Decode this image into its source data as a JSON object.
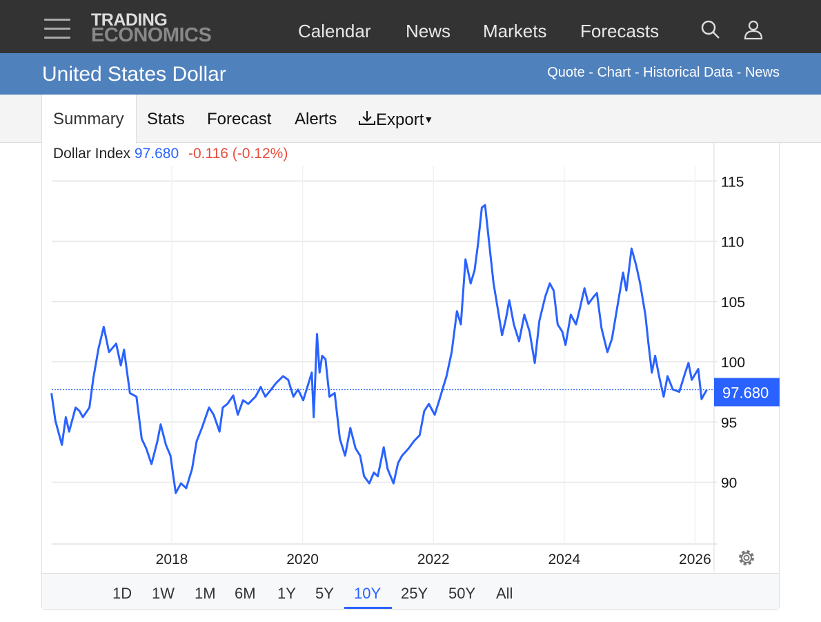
{
  "header": {
    "logo_line1": "TRADING",
    "logo_line2": "ECONOMICS",
    "nav": [
      "Calendar",
      "News",
      "Markets",
      "Forecasts"
    ],
    "icons": [
      "menu-icon",
      "search-icon",
      "user-icon"
    ]
  },
  "page": {
    "title": "United States Dollar",
    "links": "Quote - Chart - Historical Data - News"
  },
  "tabs": [
    "Summary",
    "Stats",
    "Forecast",
    "Alerts",
    "Export"
  ],
  "quote": {
    "name": "Dollar Index",
    "value": "97.680",
    "change": "-0.116 (-0.12%)"
  },
  "ranges": [
    "1D",
    "1W",
    "1M",
    "6M",
    "1Y",
    "5Y",
    "10Y",
    "25Y",
    "50Y",
    "All"
  ],
  "active_range": "10Y",
  "colors": {
    "line": "#2962ff",
    "change": "#e74c3c",
    "banner": "#4f81bd"
  },
  "chart_data": {
    "type": "line",
    "title": "Dollar Index",
    "xlabel": "",
    "ylabel": "",
    "x_ticks": [
      "2018",
      "2020",
      "2022",
      "2024",
      "2026"
    ],
    "y_ticks": [
      "90",
      "95",
      "100",
      "105",
      "110",
      "115"
    ],
    "ylim": [
      85,
      117
    ],
    "xlim": [
      2016.16,
      2026.45
    ],
    "last_value": "97.680",
    "grid": true,
    "series": [
      {
        "name": "Dollar Index",
        "points": [
          [
            2016.16,
            97.4
          ],
          [
            2016.22,
            95.1
          ],
          [
            2016.32,
            93.1
          ],
          [
            2016.38,
            95.4
          ],
          [
            2016.43,
            94.2
          ],
          [
            2016.53,
            96.2
          ],
          [
            2016.59,
            95.9
          ],
          [
            2016.64,
            95.4
          ],
          [
            2016.74,
            96.2
          ],
          [
            2016.8,
            98.6
          ],
          [
            2016.88,
            101.1
          ],
          [
            2016.96,
            102.9
          ],
          [
            2017.04,
            100.8
          ],
          [
            2017.15,
            101.5
          ],
          [
            2017.22,
            99.7
          ],
          [
            2017.27,
            101.0
          ],
          [
            2017.36,
            97.4
          ],
          [
            2017.46,
            97.1
          ],
          [
            2017.54,
            93.6
          ],
          [
            2017.61,
            92.8
          ],
          [
            2017.69,
            91.5
          ],
          [
            2017.78,
            93.4
          ],
          [
            2017.83,
            94.8
          ],
          [
            2017.91,
            93.1
          ],
          [
            2017.98,
            92.2
          ],
          [
            2018.06,
            89.1
          ],
          [
            2018.14,
            89.9
          ],
          [
            2018.22,
            89.5
          ],
          [
            2018.31,
            91.1
          ],
          [
            2018.38,
            93.4
          ],
          [
            2018.46,
            94.5
          ],
          [
            2018.57,
            96.2
          ],
          [
            2018.64,
            95.6
          ],
          [
            2018.73,
            94.2
          ],
          [
            2018.78,
            96.2
          ],
          [
            2018.85,
            96.5
          ],
          [
            2018.94,
            97.2
          ],
          [
            2019.01,
            95.6
          ],
          [
            2019.09,
            96.8
          ],
          [
            2019.17,
            96.5
          ],
          [
            2019.28,
            97.1
          ],
          [
            2019.36,
            97.9
          ],
          [
            2019.43,
            97.1
          ],
          [
            2019.52,
            97.7
          ],
          [
            2019.59,
            98.2
          ],
          [
            2019.7,
            98.8
          ],
          [
            2019.78,
            98.5
          ],
          [
            2019.86,
            97.1
          ],
          [
            2019.93,
            97.7
          ],
          [
            2020.01,
            96.8
          ],
          [
            2020.09,
            98.2
          ],
          [
            2020.14,
            99.1
          ],
          [
            2020.17,
            95.4
          ],
          [
            2020.22,
            102.3
          ],
          [
            2020.26,
            99.1
          ],
          [
            2020.3,
            100.5
          ],
          [
            2020.35,
            100.2
          ],
          [
            2020.41,
            97.1
          ],
          [
            2020.49,
            97.4
          ],
          [
            2020.57,
            93.6
          ],
          [
            2020.65,
            92.2
          ],
          [
            2020.73,
            94.5
          ],
          [
            2020.81,
            92.8
          ],
          [
            2020.88,
            92.2
          ],
          [
            2020.94,
            90.5
          ],
          [
            2021.02,
            89.9
          ],
          [
            2021.09,
            90.8
          ],
          [
            2021.15,
            90.5
          ],
          [
            2021.24,
            92.9
          ],
          [
            2021.3,
            91.1
          ],
          [
            2021.39,
            89.9
          ],
          [
            2021.46,
            91.6
          ],
          [
            2021.52,
            92.2
          ],
          [
            2021.62,
            92.8
          ],
          [
            2021.7,
            93.4
          ],
          [
            2021.79,
            93.9
          ],
          [
            2021.86,
            95.9
          ],
          [
            2021.93,
            96.5
          ],
          [
            2022.02,
            95.6
          ],
          [
            2022.09,
            96.8
          ],
          [
            2022.15,
            97.9
          ],
          [
            2022.2,
            98.8
          ],
          [
            2022.28,
            100.8
          ],
          [
            2022.36,
            104.2
          ],
          [
            2022.42,
            103.1
          ],
          [
            2022.49,
            108.5
          ],
          [
            2022.57,
            106.5
          ],
          [
            2022.63,
            107.6
          ],
          [
            2022.68,
            109.7
          ],
          [
            2022.74,
            112.8
          ],
          [
            2022.79,
            113.0
          ],
          [
            2022.84,
            110.5
          ],
          [
            2022.92,
            106.5
          ],
          [
            2022.99,
            104.2
          ],
          [
            2023.05,
            102.2
          ],
          [
            2023.11,
            103.6
          ],
          [
            2023.16,
            105.1
          ],
          [
            2023.23,
            103.1
          ],
          [
            2023.31,
            101.7
          ],
          [
            2023.39,
            103.9
          ],
          [
            2023.47,
            102.5
          ],
          [
            2023.55,
            99.9
          ],
          [
            2023.62,
            103.4
          ],
          [
            2023.71,
            105.4
          ],
          [
            2023.78,
            106.5
          ],
          [
            2023.84,
            105.9
          ],
          [
            2023.9,
            103.1
          ],
          [
            2023.97,
            102.5
          ],
          [
            2024.02,
            101.4
          ],
          [
            2024.1,
            103.9
          ],
          [
            2024.18,
            103.1
          ],
          [
            2024.23,
            104.2
          ],
          [
            2024.31,
            106.1
          ],
          [
            2024.37,
            104.8
          ],
          [
            2024.45,
            105.4
          ],
          [
            2024.5,
            105.7
          ],
          [
            2024.57,
            102.8
          ],
          [
            2024.66,
            100.8
          ],
          [
            2024.73,
            101.9
          ],
          [
            2024.81,
            104.5
          ],
          [
            2024.9,
            107.4
          ],
          [
            2024.95,
            105.9
          ],
          [
            2025.03,
            109.4
          ],
          [
            2025.1,
            108.0
          ],
          [
            2025.16,
            106.5
          ],
          [
            2025.24,
            103.9
          ],
          [
            2025.29,
            101.4
          ],
          [
            2025.34,
            99.1
          ],
          [
            2025.39,
            100.5
          ],
          [
            2025.45,
            98.8
          ],
          [
            2025.52,
            97.1
          ],
          [
            2025.58,
            98.8
          ],
          [
            2025.66,
            97.7
          ],
          [
            2025.76,
            97.5
          ],
          [
            2025.85,
            99.1
          ],
          [
            2025.9,
            99.9
          ],
          [
            2025.95,
            98.5
          ],
          [
            2026.05,
            99.4
          ],
          [
            2026.1,
            96.9
          ],
          [
            2026.13,
            97.2
          ],
          [
            2026.18,
            97.68
          ]
        ]
      }
    ]
  }
}
